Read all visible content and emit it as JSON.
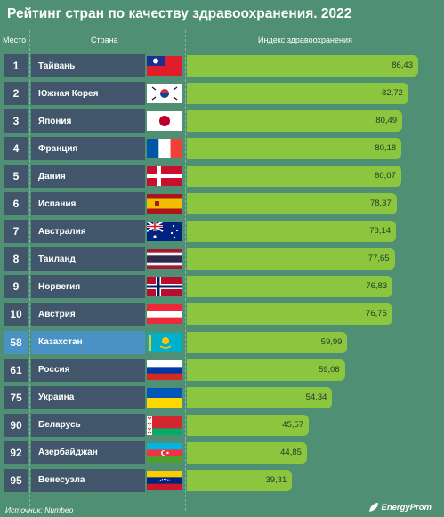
{
  "title": "Рейтинг стран по качеству здравоохранения. 2022",
  "source": "Источник: Numbeo",
  "brand": "EnergyProm",
  "chart_data": {
    "type": "bar",
    "orientation": "horizontal",
    "title": "Рейтинг стран по качеству здравоохранения. 2022",
    "columns": [
      "Место",
      "Страна",
      "Индекс здравоохранения"
    ],
    "highlight_color": "#4b92c4",
    "bar_color": "#8cc63f",
    "rows": [
      {
        "rank": "1",
        "country": "Тайвань",
        "flag": "taiwan-flag",
        "value": 86.43,
        "label": "86,43"
      },
      {
        "rank": "2",
        "country": "Южная Корея",
        "flag": "south-korea-flag",
        "value": 82.72,
        "label": "82,72"
      },
      {
        "rank": "3",
        "country": "Япония",
        "flag": "japan-flag",
        "value": 80.49,
        "label": "80,49"
      },
      {
        "rank": "4",
        "country": "Франция",
        "flag": "france-flag",
        "value": 80.18,
        "label": "80,18"
      },
      {
        "rank": "5",
        "country": "Дания",
        "flag": "denmark-flag",
        "value": 80.07,
        "label": "80,07"
      },
      {
        "rank": "6",
        "country": "Испания",
        "flag": "spain-flag",
        "value": 78.37,
        "label": "78,37"
      },
      {
        "rank": "7",
        "country": "Австралия",
        "flag": "australia-flag",
        "value": 78.14,
        "label": "78,14"
      },
      {
        "rank": "8",
        "country": "Таиланд",
        "flag": "thailand-flag",
        "value": 77.65,
        "label": "77,65"
      },
      {
        "rank": "9",
        "country": "Норвегия",
        "flag": "norway-flag",
        "value": 76.83,
        "label": "76,83"
      },
      {
        "rank": "10",
        "country": "Австрия",
        "flag": "austria-flag",
        "value": 76.75,
        "label": "76,75"
      },
      {
        "rank": "58",
        "country": "Казахстан",
        "flag": "kazakhstan-flag",
        "value": 59.99,
        "label": "59,99",
        "highlight": true
      },
      {
        "rank": "61",
        "country": "Россия",
        "flag": "russia-flag",
        "value": 59.08,
        "label": "59,08"
      },
      {
        "rank": "75",
        "country": "Украина",
        "flag": "ukraine-flag",
        "value": 54.34,
        "label": "54,34"
      },
      {
        "rank": "90",
        "country": "Беларусь",
        "flag": "belarus-flag",
        "value": 45.57,
        "label": "45,57"
      },
      {
        "rank": "92",
        "country": "Азербайджан",
        "flag": "azerbaijan-flag",
        "value": 44.85,
        "label": "44,85"
      },
      {
        "rank": "95",
        "country": "Венесуэла",
        "flag": "venezuela-flag",
        "value": 39.31,
        "label": "39,31"
      }
    ]
  }
}
